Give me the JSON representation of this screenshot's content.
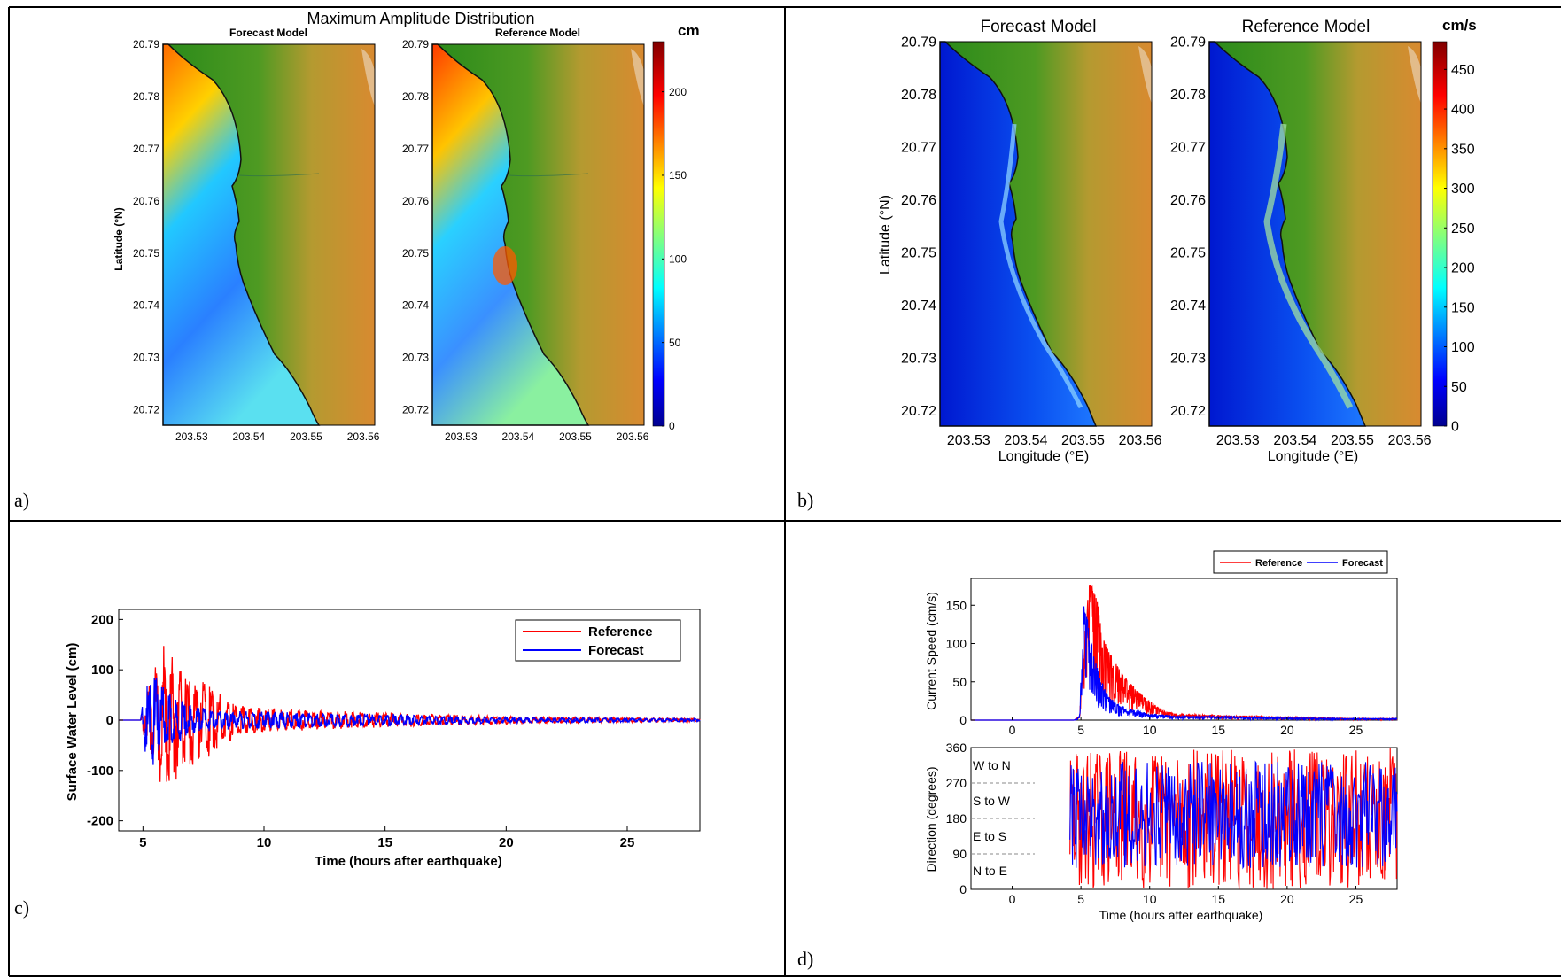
{
  "panel_labels": [
    "a)",
    "b)",
    "c)",
    "d)"
  ],
  "colors": {
    "reference": "#ff0000",
    "forecast": "#0000ff",
    "ocean_deep": "#0a2fd6",
    "land_green": "#2f8f1e",
    "land_orange": "#d08a2a",
    "grid_dash": "#888888"
  },
  "chart_data": [
    {
      "panel": "a",
      "type": "heatmap",
      "title": "Maximum Amplitude Distribution",
      "subplots": [
        {
          "title": "Forecast Model",
          "ylabel": "Latitude (°N)"
        },
        {
          "title": "Reference Model",
          "ylabel": ""
        }
      ],
      "xlim": [
        203.525,
        203.562
      ],
      "ylim": [
        20.717,
        20.79
      ],
      "xticks": [
        "203.53",
        "203.54",
        "203.55",
        "203.56"
      ],
      "yticks": [
        "20.72",
        "20.73",
        "20.74",
        "20.75",
        "20.76",
        "20.77",
        "20.78",
        "20.79"
      ],
      "colorbar": {
        "unit": "cm",
        "range": [
          0,
          230
        ],
        "ticks": [
          "0",
          "50",
          "100",
          "150",
          "200"
        ],
        "colormap": "jet"
      }
    },
    {
      "panel": "b",
      "type": "heatmap",
      "title": "",
      "subplots": [
        {
          "title": "Forecast Model",
          "ylabel": "Latitude (°N)",
          "xlabel": "Longitude (°E)"
        },
        {
          "title": "Reference Model",
          "ylabel": "",
          "xlabel": "Longitude (°E)"
        }
      ],
      "xlim": [
        203.525,
        203.562
      ],
      "ylim": [
        20.717,
        20.79
      ],
      "xticks": [
        "203.53",
        "203.54",
        "203.55",
        "203.56"
      ],
      "yticks": [
        "20.72",
        "20.73",
        "20.74",
        "20.75",
        "20.76",
        "20.77",
        "20.78",
        "20.79"
      ],
      "colorbar": {
        "unit": "cm/s",
        "range": [
          0,
          485
        ],
        "ticks": [
          "0",
          "50",
          "100",
          "150",
          "200",
          "250",
          "300",
          "350",
          "400",
          "450"
        ],
        "colormap": "jet"
      }
    },
    {
      "panel": "c",
      "type": "line",
      "xlabel": "Time (hours after earthquake)",
      "ylabel": "Surface Water Level (cm)",
      "xlim": [
        4,
        28
      ],
      "ylim": [
        -220,
        220
      ],
      "xticks": [
        "5",
        "10",
        "15",
        "20",
        "25"
      ],
      "yticks": [
        "-200",
        "-100",
        "0",
        "100",
        "200"
      ],
      "legend": {
        "position": "top-right",
        "entries": [
          "Reference",
          "Forecast"
        ]
      },
      "series": [
        {
          "name": "Reference",
          "envelope": [
            [
              4,
              0
            ],
            [
              4.9,
              0
            ],
            [
              5.2,
              80
            ],
            [
              5.6,
              130
            ],
            [
              6.0,
              168
            ],
            [
              6.5,
              120
            ],
            [
              7,
              95
            ],
            [
              8,
              70
            ],
            [
              9,
              30
            ],
            [
              10,
              25
            ],
            [
              12,
              20
            ],
            [
              15,
              15
            ],
            [
              20,
              8
            ],
            [
              25,
              5
            ],
            [
              28,
              3
            ]
          ],
          "min": -125
        },
        {
          "name": "Forecast",
          "envelope": [
            [
              4,
              0
            ],
            [
              4.9,
              0
            ],
            [
              5.1,
              80
            ],
            [
              5.5,
              105
            ],
            [
              6.0,
              60
            ],
            [
              7,
              30
            ],
            [
              8,
              20
            ],
            [
              10,
              18
            ],
            [
              12,
              15
            ],
            [
              15,
              12
            ],
            [
              20,
              6
            ],
            [
              25,
              4
            ],
            [
              28,
              3
            ]
          ],
          "min": -115
        }
      ]
    },
    {
      "panel": "d",
      "type": "line",
      "subplots": [
        {
          "ylabel": "Current Speed (cm/s)",
          "xlim": [
            -3,
            28
          ],
          "ylim": [
            0,
            185
          ],
          "xticks": [
            "0",
            "5",
            "10",
            "15",
            "20",
            "25"
          ],
          "yticks": [
            "0",
            "50",
            "100",
            "150"
          ],
          "legend": {
            "position": "top",
            "entries": [
              "Reference",
              "Forecast"
            ]
          },
          "series": [
            {
              "name": "Reference",
              "envelope": [
                [
                  4.5,
                  0
                ],
                [
                  4.9,
                  5
                ],
                [
                  5.3,
                  120
                ],
                [
                  5.6,
                  178
                ],
                [
                  6.0,
                  175
                ],
                [
                  6.5,
                  120
                ],
                [
                  7,
                  90
                ],
                [
                  8,
                  60
                ],
                [
                  9,
                  40
                ],
                [
                  10,
                  25
                ],
                [
                  11,
                  12
                ],
                [
                  12,
                  8
                ],
                [
                  15,
                  6
                ],
                [
                  20,
                  4
                ],
                [
                  25,
                  2
                ],
                [
                  28,
                  2
                ]
              ]
            },
            {
              "name": "Forecast",
              "envelope": [
                [
                  4.5,
                  0
                ],
                [
                  4.9,
                  5
                ],
                [
                  5.2,
                  150
                ],
                [
                  5.5,
                  130
                ],
                [
                  6.0,
                  80
                ],
                [
                  6.5,
                  50
                ],
                [
                  7,
                  30
                ],
                [
                  8,
                  18
                ],
                [
                  9,
                  12
                ],
                [
                  10,
                  8
                ],
                [
                  12,
                  5
                ],
                [
                  15,
                  5
                ],
                [
                  20,
                  3
                ],
                [
                  25,
                  2
                ],
                [
                  28,
                  2
                ]
              ]
            }
          ]
        },
        {
          "ylabel": "Direction (degrees)",
          "xlabel": "Time (hours after earthquake)",
          "xlim": [
            -3,
            28
          ],
          "ylim": [
            0,
            360
          ],
          "xticks": [
            "0",
            "5",
            "10",
            "15",
            "20",
            "25"
          ],
          "yticks": [
            "0",
            "90",
            "180",
            "270",
            "360"
          ],
          "annotations": [
            "W to N",
            "S to W",
            "E to S",
            "N to E"
          ],
          "series": [
            {
              "name": "Reference",
              "start": 4.2,
              "end": 28,
              "range": [
                0,
                360
              ]
            },
            {
              "name": "Forecast",
              "start": 4.2,
              "end": 28,
              "range": [
                0,
                360
              ]
            }
          ]
        }
      ]
    }
  ]
}
